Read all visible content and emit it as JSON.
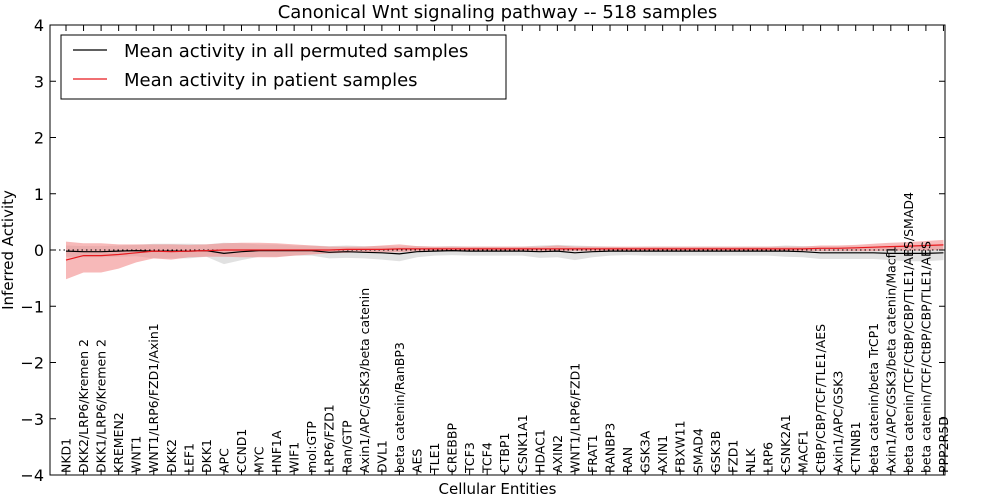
{
  "chart_data": {
    "type": "line",
    "title": "Canonical Wnt signaling pathway -- 518 samples",
    "xlabel": "Cellular Entities",
    "ylabel": "Inferred Activity",
    "ylim": [
      -4,
      4
    ],
    "yticks": [
      -4,
      -3,
      -2,
      -1,
      0,
      1,
      2,
      3,
      4
    ],
    "grid": false,
    "legend_position": "top-left",
    "zero_line_style": "dotted",
    "categories": [
      "NKD1",
      "DKK2/LRP6/Kremen 2",
      "DKK1/LRP6/Kremen 2",
      "KREMEN2",
      "WNT1",
      "WNT1/LRP6/FZD1/Axin1",
      "DKK2",
      "LEF1",
      "DKK1",
      "APC",
      "CCND1",
      "MYC",
      "HNF1A",
      "WIF1",
      "mol:GTP",
      "LRP6/FZD1",
      "Ran/GTP",
      "Axin1/APC/GSK3/beta catenin",
      "DVL1",
      "beta catenin/RanBP3",
      "AES",
      "TLE1",
      "CREBBP",
      "TCF3",
      "TCF4",
      "CTBP1",
      "CSNK1A1",
      "HDAC1",
      "AXIN2",
      "WNT1/LRP6/FZD1",
      "FRAT1",
      "RANBP3",
      "RAN",
      "GSK3A",
      "AXIN1",
      "FBXW11",
      "SMAD4",
      "GSK3B",
      "FZD1",
      "NLK",
      "LRP6",
      "CSNK2A1",
      "MACF1",
      "CtBP/CBP/TCF/TLE1/AES",
      "Axin1/APC/GSK3",
      "CTNNB1",
      "beta catenin/beta TrCP1",
      "Axin1/APC/GSK3/beta catenin/Macf1",
      "beta catenin/TCF/CtBP/CBP/TLE1/AES/SMAD4",
      "beta catenin/TCF/CtBP/CBP/TLE1/AES",
      "PPP2R5D"
    ],
    "series": [
      {
        "name": "Mean activity in all permuted samples",
        "color": "#000000",
        "band_color": "#c8c8c8",
        "values": [
          -0.02,
          -0.03,
          -0.03,
          -0.02,
          -0.01,
          -0.02,
          -0.02,
          -0.02,
          -0.01,
          -0.06,
          -0.03,
          -0.01,
          -0.01,
          -0.01,
          -0.01,
          -0.04,
          -0.03,
          -0.04,
          -0.05,
          -0.07,
          -0.03,
          -0.02,
          -0.01,
          -0.02,
          -0.02,
          -0.02,
          -0.02,
          -0.03,
          -0.02,
          -0.05,
          -0.03,
          -0.02,
          -0.02,
          -0.02,
          -0.02,
          -0.02,
          -0.02,
          -0.02,
          -0.02,
          -0.02,
          -0.02,
          -0.02,
          -0.03,
          -0.05,
          -0.05,
          -0.05,
          -0.05,
          -0.06,
          -0.06,
          -0.06,
          -0.05
        ],
        "lower": [
          -0.12,
          -0.13,
          -0.13,
          -0.12,
          -0.11,
          -0.15,
          -0.15,
          -0.15,
          -0.12,
          -0.25,
          -0.18,
          -0.12,
          -0.12,
          -0.1,
          -0.1,
          -0.15,
          -0.14,
          -0.15,
          -0.17,
          -0.2,
          -0.13,
          -0.1,
          -0.09,
          -0.1,
          -0.1,
          -0.1,
          -0.1,
          -0.14,
          -0.13,
          -0.18,
          -0.13,
          -0.1,
          -0.09,
          -0.1,
          -0.1,
          -0.1,
          -0.1,
          -0.1,
          -0.1,
          -0.1,
          -0.1,
          -0.12,
          -0.13,
          -0.16,
          -0.16,
          -0.16,
          -0.16,
          -0.18,
          -0.2,
          -0.2,
          -0.18
        ],
        "upper": [
          0.08,
          0.07,
          0.07,
          0.08,
          0.09,
          0.11,
          0.11,
          0.11,
          0.1,
          0.13,
          0.12,
          0.1,
          0.1,
          0.08,
          0.08,
          0.07,
          0.08,
          0.07,
          0.07,
          0.06,
          0.07,
          0.06,
          0.07,
          0.06,
          0.06,
          0.06,
          0.06,
          0.08,
          0.09,
          0.08,
          0.07,
          0.06,
          0.05,
          0.06,
          0.06,
          0.06,
          0.06,
          0.06,
          0.06,
          0.06,
          0.06,
          0.08,
          0.07,
          0.06,
          0.06,
          0.06,
          0.06,
          0.06,
          0.08,
          0.08,
          0.08
        ]
      },
      {
        "name": "Mean activity in patient samples",
        "color": "#e8191e",
        "band_color": "#f28b8b",
        "values": [
          -0.18,
          -0.1,
          -0.1,
          -0.08,
          -0.05,
          -0.02,
          -0.03,
          -0.02,
          -0.01,
          0.0,
          0.0,
          0.0,
          0.0,
          0.0,
          0.0,
          0.0,
          0.01,
          0.01,
          0.01,
          0.02,
          0.02,
          0.02,
          0.02,
          0.02,
          0.02,
          0.02,
          0.02,
          0.02,
          0.02,
          0.02,
          0.02,
          0.02,
          0.02,
          0.02,
          0.02,
          0.02,
          0.02,
          0.02,
          0.02,
          0.02,
          0.02,
          0.02,
          0.02,
          0.03,
          0.03,
          0.04,
          0.05,
          0.06,
          0.07,
          0.08,
          0.09
        ],
        "lower": [
          -0.52,
          -0.4,
          -0.4,
          -0.33,
          -0.22,
          -0.15,
          -0.17,
          -0.13,
          -0.12,
          -0.12,
          -0.13,
          -0.13,
          -0.13,
          -0.1,
          -0.08,
          -0.06,
          -0.05,
          -0.04,
          -0.04,
          -0.04,
          -0.02,
          -0.02,
          -0.02,
          -0.02,
          -0.02,
          -0.02,
          -0.02,
          -0.02,
          -0.02,
          -0.02,
          -0.02,
          -0.02,
          -0.02,
          -0.02,
          -0.02,
          -0.02,
          -0.02,
          -0.02,
          -0.02,
          -0.02,
          -0.02,
          -0.02,
          -0.02,
          -0.02,
          -0.02,
          -0.02,
          -0.02,
          -0.01,
          -0.01,
          -0.01,
          0.0
        ],
        "upper": [
          0.15,
          0.12,
          0.12,
          0.1,
          0.1,
          0.1,
          0.1,
          0.09,
          0.1,
          0.12,
          0.13,
          0.13,
          0.12,
          0.1,
          0.08,
          0.06,
          0.06,
          0.06,
          0.08,
          0.1,
          0.07,
          0.06,
          0.06,
          0.06,
          0.06,
          0.06,
          0.06,
          0.06,
          0.08,
          0.06,
          0.06,
          0.06,
          0.06,
          0.06,
          0.06,
          0.06,
          0.06,
          0.06,
          0.06,
          0.06,
          0.06,
          0.06,
          0.06,
          0.08,
          0.08,
          0.09,
          0.11,
          0.13,
          0.14,
          0.16,
          0.18
        ]
      }
    ]
  }
}
